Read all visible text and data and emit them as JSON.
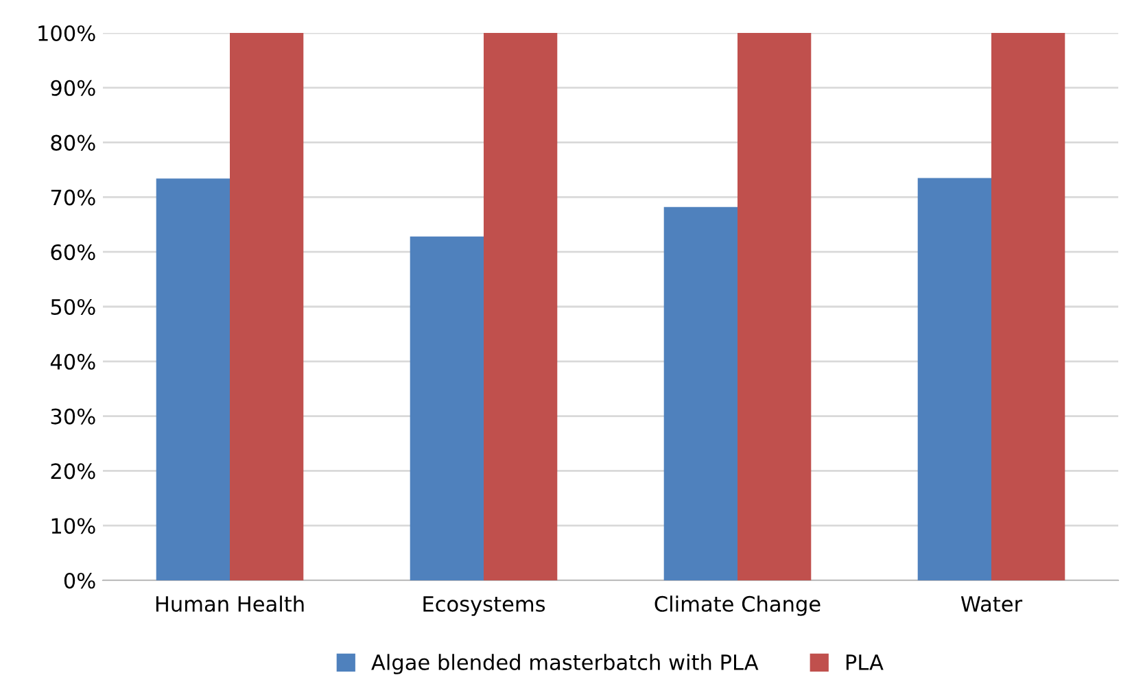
{
  "chart_data": {
    "type": "bar",
    "categories": [
      "Human Health",
      "Ecosystems",
      "Climate Change",
      "Water"
    ],
    "series": [
      {
        "name": "Algae blended masterbatch with PLA",
        "color": "#4f81bd",
        "values": [
          73.4,
          62.8,
          68.2,
          73.5
        ]
      },
      {
        "name": "PLA",
        "color": "#c0504d",
        "values": [
          100,
          100,
          100,
          100
        ]
      }
    ],
    "ylim": [
      0,
      100
    ],
    "yticks": [
      {
        "value": 0,
        "label": "0%"
      },
      {
        "value": 10,
        "label": "10%"
      },
      {
        "value": 20,
        "label": "20%"
      },
      {
        "value": 30,
        "label": "30%"
      },
      {
        "value": 40,
        "label": "40%"
      },
      {
        "value": 50,
        "label": "50%"
      },
      {
        "value": 60,
        "label": "60%"
      },
      {
        "value": 70,
        "label": "70%"
      },
      {
        "value": 80,
        "label": "80%"
      },
      {
        "value": 90,
        "label": "90%"
      },
      {
        "value": 100,
        "label": "100%"
      }
    ],
    "grid": "y",
    "legend": "bottom"
  }
}
